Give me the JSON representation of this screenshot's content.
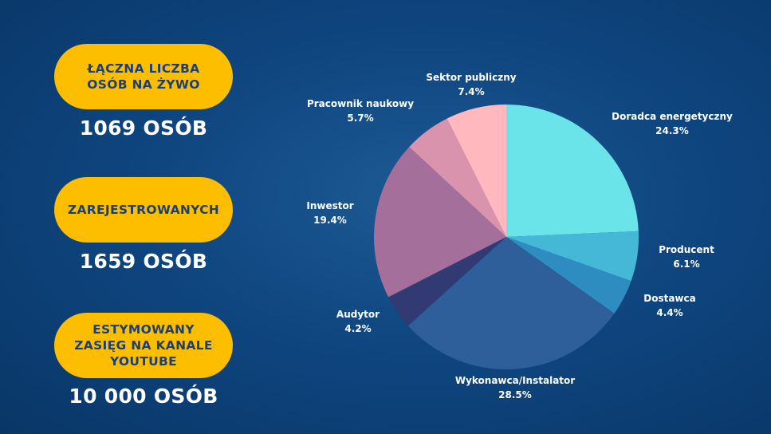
{
  "stats": [
    {
      "label": "ŁĄCZNA LICZBA\nOSÓB NA ŻYWO",
      "value": "1069 OSÓB"
    },
    {
      "label": "ZAREJESTROWANYCH",
      "value": "1659 OSÓB"
    },
    {
      "label": "ESTYMOWANY\nZASIĘG NA KANALE\nYOUTUBE",
      "value": "10 000 OSÓB"
    }
  ],
  "chart_data": {
    "type": "pie",
    "slices": [
      {
        "name": "Doradca energetyczny",
        "value": 24.3,
        "label": "24.3%",
        "color": "#6be4e9"
      },
      {
        "name": "Producent",
        "value": 6.1,
        "label": "6.1%",
        "color": "#44b8d6"
      },
      {
        "name": "Dostawca",
        "value": 4.4,
        "label": "4.4%",
        "color": "#2f8cc0"
      },
      {
        "name": "Wykonawca/Instalator",
        "value": 28.5,
        "label": "28.5%",
        "color": "#2f5f9b"
      },
      {
        "name": "Audytor",
        "value": 4.2,
        "label": "4.2%",
        "color": "#313a72"
      },
      {
        "name": "Inwestor",
        "value": 19.4,
        "label": "19.4%",
        "color": "#a46f9a"
      },
      {
        "name": "Pracownik naukowy",
        "value": 5.7,
        "label": "5.7%",
        "color": "#d993ad"
      },
      {
        "name": "Sektor publiczny",
        "value": 7.4,
        "label": "7.4%",
        "color": "#ffb8bd"
      }
    ]
  }
}
